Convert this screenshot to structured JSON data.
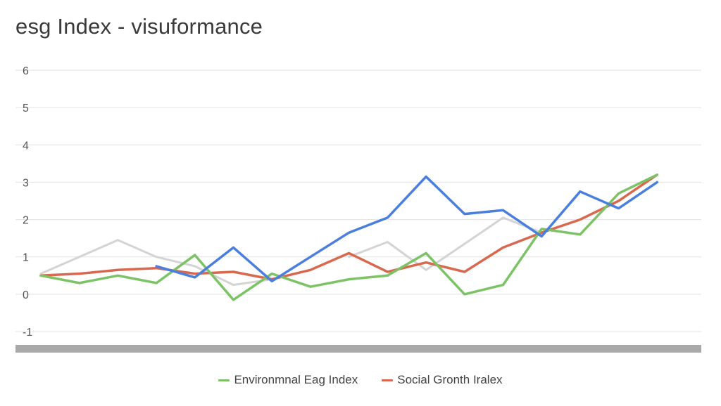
{
  "title": "esg Index - visuformance",
  "chart_data": {
    "type": "line",
    "title": "esg Index - visuformance",
    "xlabel": "",
    "ylabel": "",
    "ylim": [
      -1,
      6
    ],
    "yticks": [
      "-1",
      "0",
      "1",
      "2",
      "3",
      "4",
      "5",
      "6"
    ],
    "grid": true,
    "legend_position": "bottom",
    "x": [
      0,
      1,
      2,
      3,
      4,
      5,
      6,
      7,
      8,
      9,
      10,
      11,
      12,
      13,
      14,
      15,
      16,
      17
    ],
    "series": [
      {
        "name": "",
        "color": "#4a7fe0",
        "values": [
          0.5,
          null,
          null,
          0.75,
          0.45,
          1.25,
          0.35,
          1.0,
          1.65,
          2.05,
          3.15,
          2.15,
          2.25,
          1.55,
          2.75,
          2.3,
          3.0,
          null
        ]
      },
      {
        "name": "Environmnal Eag Index",
        "color": "#7cc366",
        "values": [
          0.5,
          0.3,
          0.5,
          0.3,
          1.05,
          -0.15,
          0.55,
          0.2,
          0.4,
          0.5,
          1.1,
          0.0,
          0.25,
          1.75,
          1.6,
          2.7,
          3.2,
          null
        ]
      },
      {
        "name": "Social Gronth Iralex",
        "color": "#d9684f",
        "values": [
          0.5,
          0.55,
          0.65,
          0.7,
          0.55,
          0.6,
          0.4,
          0.65,
          1.1,
          0.6,
          0.85,
          0.6,
          1.25,
          1.65,
          2.0,
          2.5,
          3.2,
          null
        ]
      },
      {
        "name": "",
        "color": "#d4d4d4",
        "values": [
          0.55,
          1.0,
          1.45,
          1.0,
          0.75,
          0.25,
          0.4,
          null,
          1.0,
          1.4,
          0.65,
          1.35,
          2.05,
          1.65,
          null,
          null,
          null,
          null
        ]
      }
    ]
  },
  "legend": [
    {
      "label": "Environmnal Eag Index",
      "color": "#7cc366"
    },
    {
      "label": "Social Gronth Iralex",
      "color": "#d9684f"
    }
  ]
}
